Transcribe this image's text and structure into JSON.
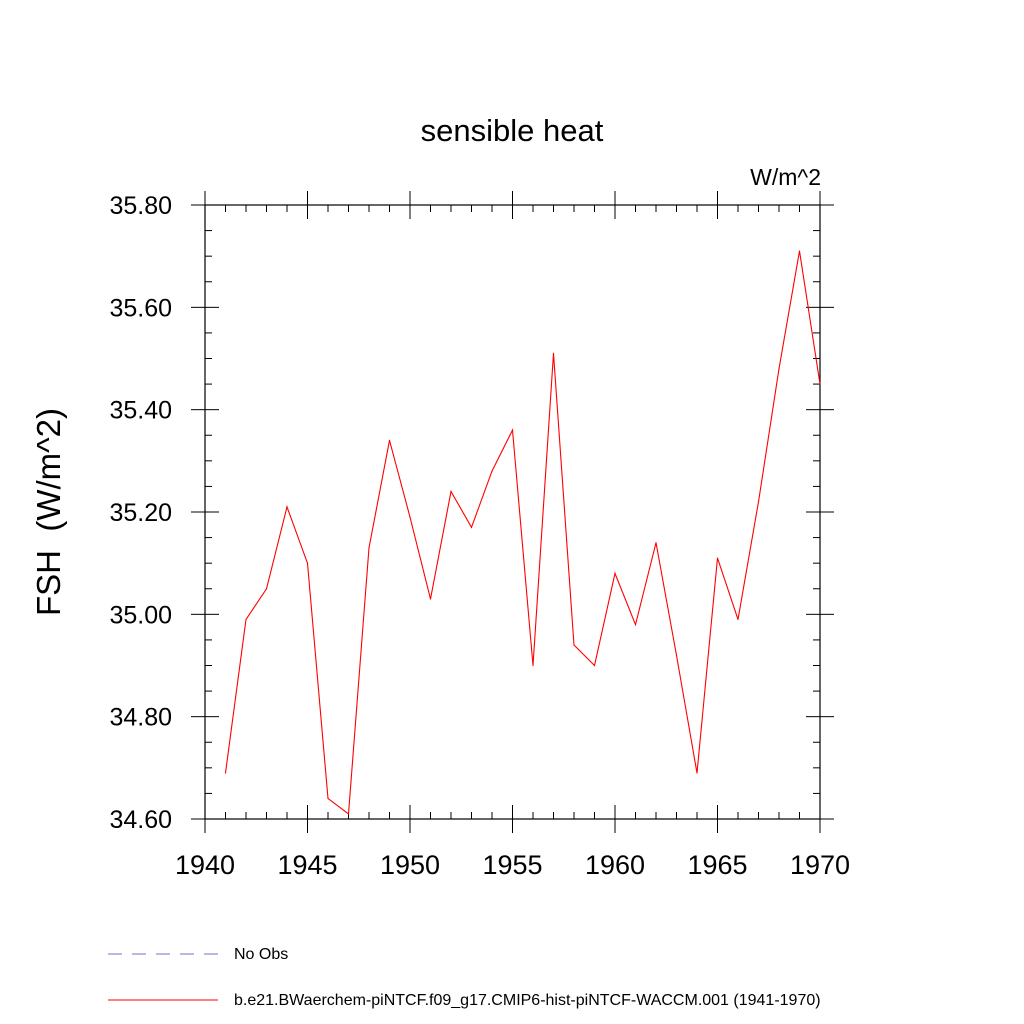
{
  "chart_data": {
    "type": "line",
    "title": "sensible heat",
    "units": "W/m^2",
    "ylabel": "FSH  (W/m^2)",
    "xlabel": "",
    "xlim": [
      1940,
      1970
    ],
    "ylim": [
      34.6,
      35.8
    ],
    "x_ticks": [
      "1940",
      "1945",
      "1950",
      "1955",
      "1960",
      "1965",
      "1970"
    ],
    "y_ticks": [
      "34.60",
      "34.80",
      "35.00",
      "35.20",
      "35.40",
      "35.60",
      "35.80"
    ],
    "grid": false,
    "series": [
      {
        "name": "b.e21.BWaerchem-piNTCF.f09_g17.CMIP6-hist-piNTCF-WACCM.001 (1941-1970)",
        "color": "#ff0000",
        "x": [
          1941,
          1942,
          1943,
          1944,
          1945,
          1946,
          1947,
          1948,
          1949,
          1950,
          1951,
          1952,
          1953,
          1954,
          1955,
          1956,
          1957,
          1958,
          1959,
          1960,
          1961,
          1962,
          1963,
          1964,
          1965,
          1966,
          1967,
          1968,
          1969,
          1970
        ],
        "y": [
          34.69,
          34.99,
          35.05,
          35.21,
          35.1,
          34.64,
          34.61,
          35.13,
          35.34,
          35.19,
          35.03,
          35.24,
          35.17,
          35.28,
          35.36,
          34.9,
          35.51,
          34.94,
          34.9,
          35.08,
          34.98,
          35.14,
          34.92,
          34.69,
          35.11,
          34.99,
          35.22,
          35.48,
          35.71,
          35.45
        ]
      }
    ],
    "legend": {
      "placement": "bottom-left",
      "entries": [
        {
          "label": "No Obs",
          "color": "#7a6fc0",
          "style": "dashed"
        },
        {
          "label": "b.e21.BWaerchem-piNTCF.f09_g17.CMIP6-hist-piNTCF-WACCM.001 (1941-1970)",
          "color": "#ff0000",
          "style": "solid"
        }
      ]
    }
  }
}
